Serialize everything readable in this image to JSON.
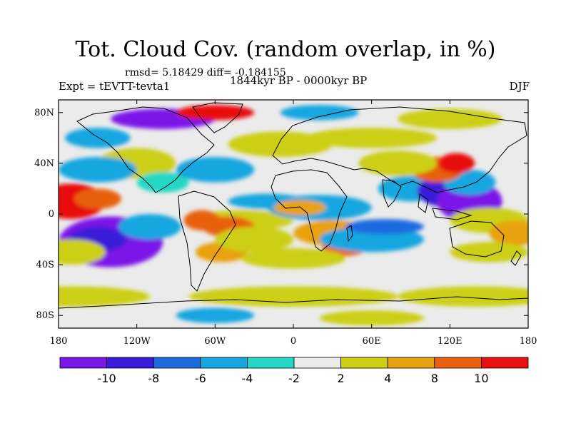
{
  "title": "Tot. Cloud Cov. (random overlap, in %)",
  "stats": "rmsd= 5.18429 diff= -0.184155",
  "experiment": "Expt = tEVTT-tevta1",
  "period": "1844kyr BP - 0000kyr BP",
  "season": "DJF",
  "map": {
    "lat_ticks": [
      "80N",
      "40N",
      "0",
      "40S",
      "80S"
    ],
    "lon_ticks": [
      "180",
      "120W",
      "60W",
      "0",
      "60E",
      "120E",
      "180"
    ]
  },
  "colorbar": {
    "labels": [
      "-10",
      "-8",
      "-6",
      "-4",
      "-2",
      "2",
      "4",
      "8",
      "10"
    ],
    "colors": [
      "#7b16e8",
      "#3a1ad8",
      "#1d6be0",
      "#16a6e0",
      "#22d8c4",
      "#ebebeb",
      "#cccf12",
      "#e8a20c",
      "#e86010",
      "#e81010"
    ]
  }
}
